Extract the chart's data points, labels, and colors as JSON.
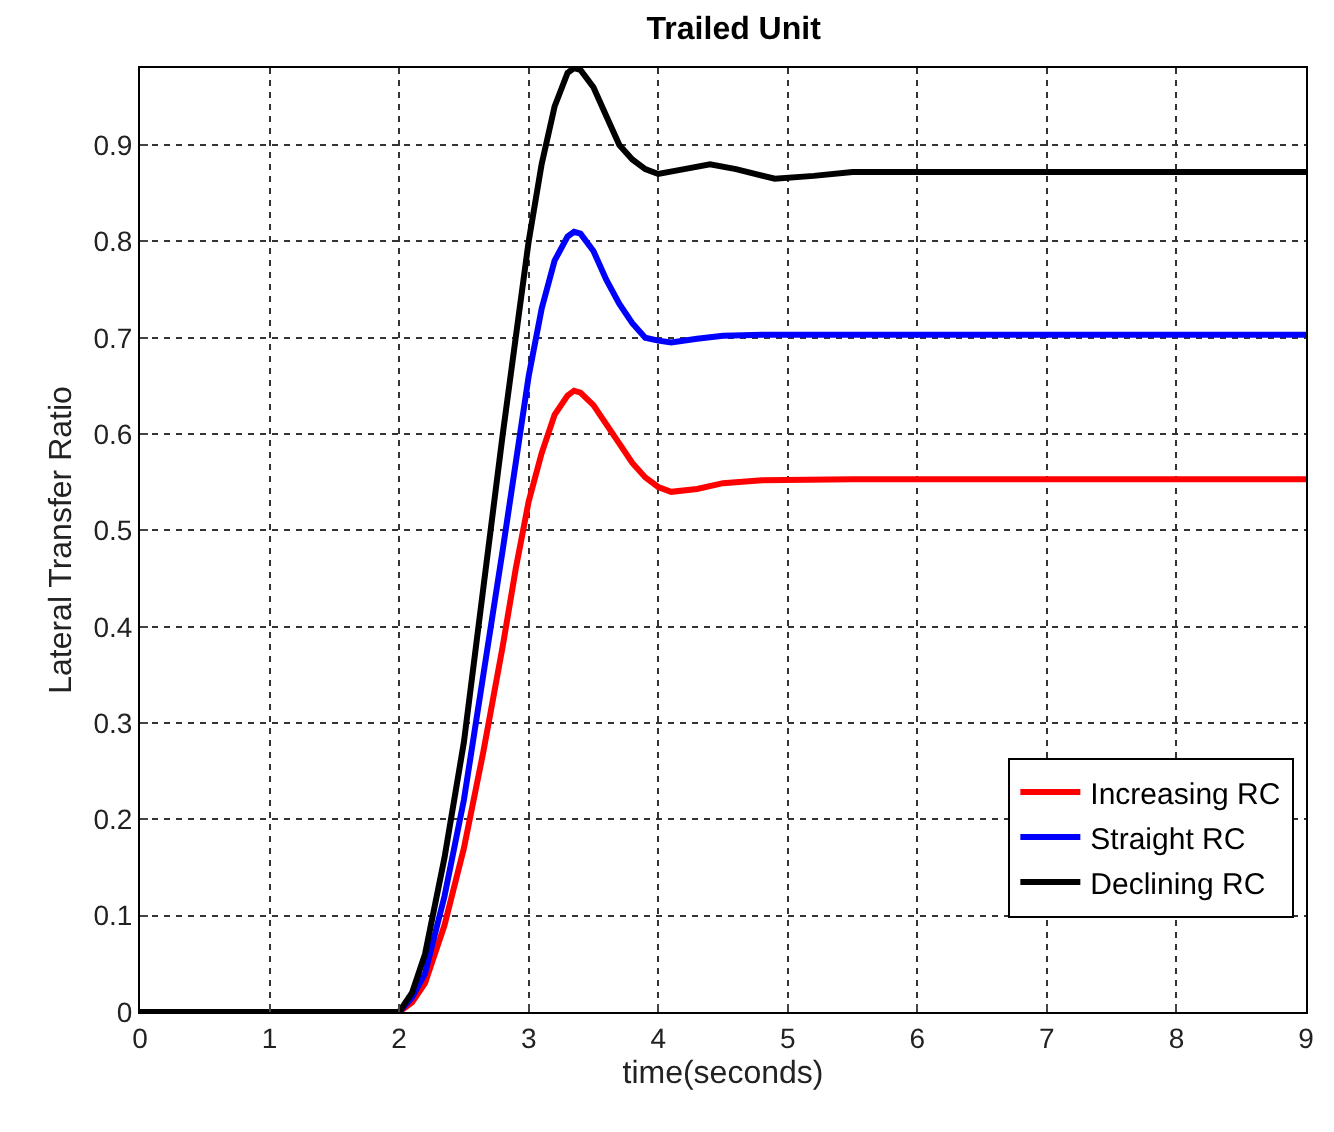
{
  "chart_data": {
    "type": "line",
    "title": "Trailed Unit",
    "xlabel": "time(seconds)",
    "ylabel": "Lateral Transfer Ratio",
    "xlim": [
      0,
      9
    ],
    "xticks": [
      0,
      1,
      2,
      3,
      4,
      5,
      6,
      7,
      8,
      9
    ],
    "ylim": [
      0,
      0.98
    ],
    "yticks": [
      0,
      0.1,
      0.2,
      0.3,
      0.4,
      0.5,
      0.6,
      0.7,
      0.8,
      0.9
    ],
    "grid": true,
    "legend": "bottom right",
    "line_style": "solid",
    "marker": "none",
    "series": [
      {
        "name": "Increasing RC",
        "color": "#ff0000",
        "x": [
          0,
          2,
          2.1,
          2.2,
          2.35,
          2.5,
          2.65,
          2.8,
          2.9,
          3.0,
          3.1,
          3.2,
          3.3,
          3.35,
          3.4,
          3.5,
          3.6,
          3.7,
          3.8,
          3.9,
          4.0,
          4.1,
          4.3,
          4.5,
          4.8,
          5.5,
          9
        ],
        "values": [
          0,
          0,
          0.01,
          0.03,
          0.09,
          0.17,
          0.27,
          0.38,
          0.46,
          0.53,
          0.58,
          0.62,
          0.64,
          0.645,
          0.643,
          0.63,
          0.61,
          0.59,
          0.57,
          0.555,
          0.545,
          0.54,
          0.543,
          0.549,
          0.552,
          0.553,
          0.553
        ]
      },
      {
        "name": "Straight RC",
        "color": "#0000ff",
        "x": [
          0,
          2,
          2.1,
          2.2,
          2.35,
          2.5,
          2.65,
          2.8,
          2.9,
          3.0,
          3.1,
          3.2,
          3.3,
          3.35,
          3.4,
          3.5,
          3.6,
          3.7,
          3.8,
          3.9,
          4.0,
          4.1,
          4.3,
          4.5,
          4.8,
          5.5,
          9
        ],
        "values": [
          0,
          0,
          0.015,
          0.04,
          0.12,
          0.22,
          0.35,
          0.48,
          0.57,
          0.66,
          0.73,
          0.78,
          0.805,
          0.81,
          0.808,
          0.79,
          0.76,
          0.735,
          0.715,
          0.7,
          0.697,
          0.695,
          0.699,
          0.702,
          0.703,
          0.703,
          0.703
        ]
      },
      {
        "name": "Declining RC",
        "color": "#000000",
        "x": [
          0,
          2,
          2.1,
          2.2,
          2.35,
          2.5,
          2.65,
          2.8,
          2.9,
          3.0,
          3.1,
          3.2,
          3.3,
          3.35,
          3.4,
          3.5,
          3.6,
          3.7,
          3.8,
          3.9,
          4.0,
          4.2,
          4.4,
          4.6,
          4.9,
          5.2,
          5.5,
          6,
          9
        ],
        "values": [
          0,
          0,
          0.02,
          0.06,
          0.16,
          0.28,
          0.44,
          0.6,
          0.7,
          0.8,
          0.88,
          0.94,
          0.975,
          0.98,
          0.978,
          0.96,
          0.93,
          0.9,
          0.885,
          0.875,
          0.87,
          0.875,
          0.88,
          0.875,
          0.865,
          0.868,
          0.872,
          0.872,
          0.872
        ]
      }
    ]
  }
}
